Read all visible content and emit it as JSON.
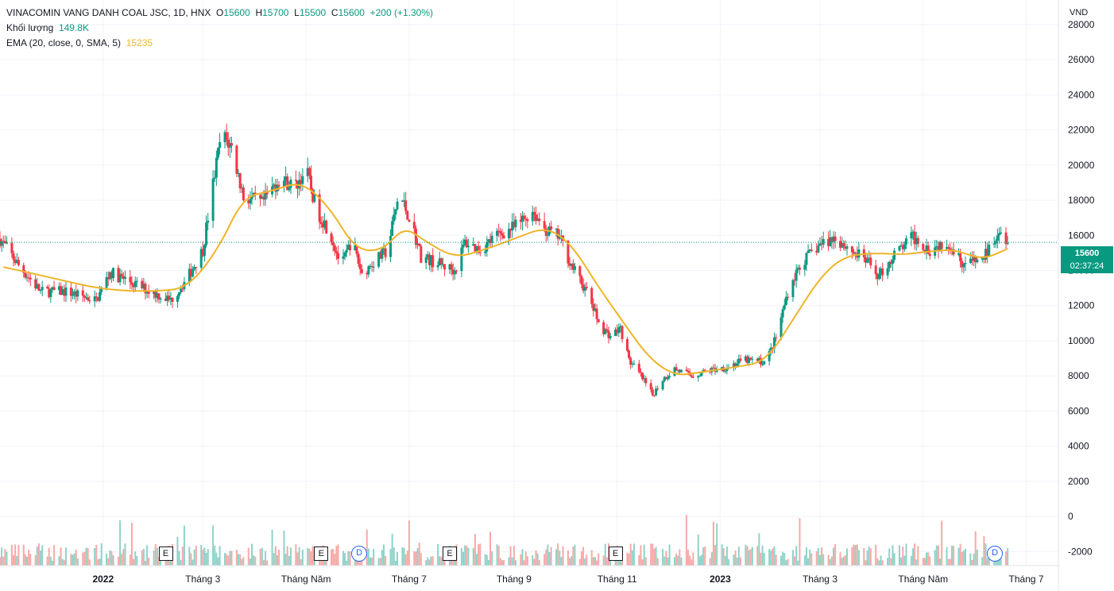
{
  "header": {
    "symbol_line": "VINACOMIN VANG DANH COAL JSC, 1D, HNX",
    "open_label": "O",
    "open": "15600",
    "high_label": "H",
    "high": "15700",
    "low_label": "L",
    "low": "15500",
    "close_label": "C",
    "close": "15600",
    "change": "+200 (+1.30%)",
    "volume_label": "Khối lượng",
    "volume_value": "149.8K",
    "ema_label": "EMA (20, close, 0, SMA, 5)",
    "ema_value": "15235"
  },
  "last_price": {
    "value": "15600",
    "countdown": "02:37:24"
  },
  "colors": {
    "up": "#089981",
    "down": "#f23645",
    "ema": "#f0b429",
    "vol_up": "#8fd3c8",
    "vol_down": "#f7a9a7",
    "badge": "#089981",
    "event": "#131722",
    "dividend": "#2962ff"
  },
  "events": [
    {
      "type": "earnings",
      "label": "E",
      "date": "2022-02-07"
    },
    {
      "type": "earnings",
      "label": "E",
      "date": "2022-05-10"
    },
    {
      "type": "dividend",
      "label": "D",
      "date": "2022-06-01"
    },
    {
      "type": "earnings",
      "label": "E",
      "date": "2022-07-25"
    },
    {
      "type": "earnings",
      "label": "E",
      "date": "2022-10-31"
    },
    {
      "type": "dividend",
      "label": "D",
      "date": "2023-06-12"
    }
  ],
  "chart_data": {
    "type": "candlestick",
    "currency_label": "VND",
    "ylim": [
      -2800,
      29400
    ],
    "y_ticks": [
      28000,
      26000,
      24000,
      22000,
      20000,
      18000,
      16000,
      14000,
      12000,
      10000,
      8000,
      6000,
      4000,
      2000,
      0,
      -2000
    ],
    "x_ticks": [
      {
        "date": "2022-01-01",
        "label": "2022",
        "bold": true
      },
      {
        "date": "2022-03-01",
        "label": "Tháng 3"
      },
      {
        "date": "2022-05-01",
        "label": "Tháng Năm"
      },
      {
        "date": "2022-07-01",
        "label": "Tháng 7"
      },
      {
        "date": "2022-09-01",
        "label": "Tháng 9"
      },
      {
        "date": "2022-11-01",
        "label": "Tháng 11"
      },
      {
        "date": "2023-01-01",
        "label": "2023",
        "bold": true
      },
      {
        "date": "2023-03-01",
        "label": "Tháng 3"
      },
      {
        "date": "2023-05-01",
        "label": "Tháng Năm"
      },
      {
        "date": "2023-07-01",
        "label": "Tháng 7"
      }
    ],
    "x_range": [
      "2021-11-01",
      "2023-07-20"
    ],
    "price_path": [
      [
        "2021-11-01",
        15800
      ],
      [
        "2021-11-12",
        14300
      ],
      [
        "2021-11-25",
        12800
      ],
      [
        "2021-12-10",
        12800
      ],
      [
        "2021-12-28",
        12300
      ],
      [
        "2022-01-05",
        13900
      ],
      [
        "2022-01-20",
        13200
      ],
      [
        "2022-02-10",
        12300
      ],
      [
        "2022-02-20",
        13600
      ],
      [
        "2022-03-01",
        15200
      ],
      [
        "2022-03-08",
        19500
      ],
      [
        "2022-03-12",
        21800
      ],
      [
        "2022-03-18",
        21000
      ],
      [
        "2022-03-25",
        18200
      ],
      [
        "2022-04-05",
        17800
      ],
      [
        "2022-04-15",
        19200
      ],
      [
        "2022-04-25",
        18800
      ],
      [
        "2022-05-01",
        19800
      ],
      [
        "2022-05-07",
        17500
      ],
      [
        "2022-05-15",
        16200
      ],
      [
        "2022-05-22",
        14200
      ],
      [
        "2022-05-28",
        15800
      ],
      [
        "2022-06-03",
        13800
      ],
      [
        "2022-06-10",
        14500
      ],
      [
        "2022-06-18",
        15100
      ],
      [
        "2022-06-25",
        18400
      ],
      [
        "2022-07-02",
        16800
      ],
      [
        "2022-07-08",
        14800
      ],
      [
        "2022-07-18",
        14400
      ],
      [
        "2022-07-28",
        14000
      ],
      [
        "2022-08-03",
        15600
      ],
      [
        "2022-08-12",
        15200
      ],
      [
        "2022-08-22",
        16000
      ],
      [
        "2022-09-02",
        16500
      ],
      [
        "2022-09-12",
        17400
      ],
      [
        "2022-09-20",
        16300
      ],
      [
        "2022-09-28",
        15900
      ],
      [
        "2022-10-05",
        14300
      ],
      [
        "2022-10-15",
        12600
      ],
      [
        "2022-10-22",
        10800
      ],
      [
        "2022-10-28",
        10300
      ],
      [
        "2022-11-03",
        10700
      ],
      [
        "2022-11-08",
        8900
      ],
      [
        "2022-11-15",
        8000
      ],
      [
        "2022-11-22",
        6900
      ],
      [
        "2022-11-28",
        7800
      ],
      [
        "2022-12-05",
        8400
      ],
      [
        "2022-12-15",
        8000
      ],
      [
        "2022-12-25",
        8300
      ],
      [
        "2023-01-05",
        8500
      ],
      [
        "2023-01-15",
        8900
      ],
      [
        "2023-01-28",
        8800
      ],
      [
        "2023-02-03",
        10200
      ],
      [
        "2023-02-10",
        12800
      ],
      [
        "2023-02-17",
        14300
      ],
      [
        "2023-02-28",
        15400
      ],
      [
        "2023-03-10",
        15900
      ],
      [
        "2023-03-20",
        15100
      ],
      [
        "2023-03-28",
        14600
      ],
      [
        "2023-04-05",
        13700
      ],
      [
        "2023-04-15",
        15000
      ],
      [
        "2023-04-25",
        15900
      ],
      [
        "2023-05-05",
        15200
      ],
      [
        "2023-05-15",
        15700
      ],
      [
        "2023-05-25",
        14400
      ],
      [
        "2023-06-05",
        14600
      ],
      [
        "2023-06-10",
        15400
      ],
      [
        "2023-06-15",
        16500
      ],
      [
        "2023-06-20",
        15600
      ]
    ],
    "ema_path": [
      [
        "2021-11-03",
        14200
      ],
      [
        "2021-12-01",
        13600
      ],
      [
        "2022-01-01",
        12900
      ],
      [
        "2022-02-01",
        12800
      ],
      [
        "2022-02-20",
        13000
      ],
      [
        "2022-03-10",
        15200
      ],
      [
        "2022-03-25",
        18200
      ],
      [
        "2022-04-10",
        18500
      ],
      [
        "2022-04-28",
        19100
      ],
      [
        "2022-05-15",
        17600
      ],
      [
        "2022-05-30",
        15200
      ],
      [
        "2022-06-15",
        15100
      ],
      [
        "2022-06-28",
        16500
      ],
      [
        "2022-07-10",
        15700
      ],
      [
        "2022-07-28",
        14700
      ],
      [
        "2022-08-15",
        15200
      ],
      [
        "2022-09-01",
        15800
      ],
      [
        "2022-09-20",
        16500
      ],
      [
        "2022-10-05",
        15500
      ],
      [
        "2022-10-20",
        13200
      ],
      [
        "2022-11-05",
        11000
      ],
      [
        "2022-11-20",
        9000
      ],
      [
        "2022-12-05",
        8000
      ],
      [
        "2022-12-20",
        8200
      ],
      [
        "2023-01-10",
        8500
      ],
      [
        "2023-01-28",
        8800
      ],
      [
        "2023-02-15",
        11500
      ],
      [
        "2023-03-01",
        13600
      ],
      [
        "2023-03-15",
        14800
      ],
      [
        "2023-04-01",
        15000
      ],
      [
        "2023-04-20",
        14900
      ],
      [
        "2023-05-05",
        15100
      ],
      [
        "2023-05-20",
        15200
      ],
      [
        "2023-06-05",
        14600
      ],
      [
        "2023-06-20",
        15235
      ]
    ]
  }
}
